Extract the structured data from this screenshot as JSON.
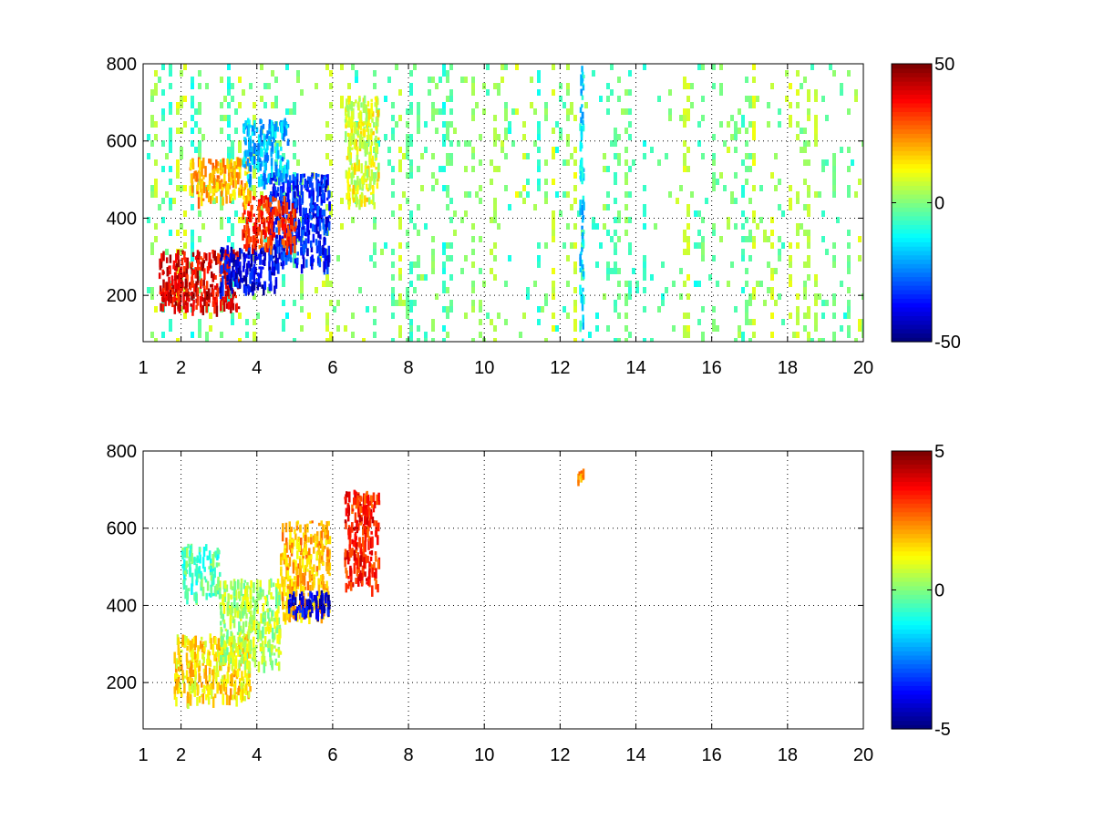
{
  "chart_data": [
    {
      "type": "heatmap",
      "title": "",
      "xlabel": "",
      "ylabel": "",
      "xlim": [
        1,
        20
      ],
      "ylim": [
        80,
        800
      ],
      "x_scale": "linear",
      "x_ticks": [
        1,
        2,
        4,
        6,
        8,
        10,
        12,
        14,
        16,
        18,
        20
      ],
      "x_tick_labels": [
        "1",
        "2",
        "4",
        "6",
        "8",
        "10",
        "12",
        "14",
        "16",
        "18",
        "20"
      ],
      "y_ticks": [
        200,
        400,
        600,
        800
      ],
      "y_tick_labels": [
        "200",
        "400",
        "600",
        "800"
      ],
      "grid": true,
      "colormap": "jet",
      "clim": [
        -50,
        50
      ],
      "colorbar_ticks": [
        -50,
        0,
        50
      ],
      "colorbar_tick_labels": [
        "-50",
        "0",
        "50"
      ],
      "features": [
        {
          "x": [
            1.4,
            3.5
          ],
          "y": [
            170,
            320
          ],
          "value": 40
        },
        {
          "x": [
            3.0,
            4.5
          ],
          "y": [
            220,
            330
          ],
          "value": -40
        },
        {
          "x": [
            4.3,
            5.9
          ],
          "y": [
            280,
            520
          ],
          "value": -35
        },
        {
          "x": [
            3.6,
            5.0
          ],
          "y": [
            330,
            460
          ],
          "value": 35
        },
        {
          "x": [
            2.2,
            3.8
          ],
          "y": [
            450,
            560
          ],
          "value": 20
        },
        {
          "x": [
            3.6,
            4.8
          ],
          "y": [
            500,
            660
          ],
          "value": -20
        },
        {
          "x": [
            6.3,
            7.2
          ],
          "y": [
            440,
            720
          ],
          "value": 10
        },
        {
          "x": [
            12.5,
            12.6
          ],
          "y": [
            80,
            800
          ],
          "value": -15
        }
      ],
      "background_speckle": {
        "x_range": [
          1,
          20
        ],
        "y_range": [
          80,
          800
        ],
        "value_range": [
          -12,
          12
        ]
      }
    },
    {
      "type": "heatmap",
      "title": "",
      "xlabel": "",
      "ylabel": "",
      "xlim": [
        1,
        20
      ],
      "ylim": [
        80,
        800
      ],
      "x_scale": "linear",
      "x_ticks": [
        1,
        2,
        4,
        6,
        8,
        10,
        12,
        14,
        16,
        18,
        20
      ],
      "x_tick_labels": [
        "1",
        "2",
        "4",
        "6",
        "8",
        "10",
        "12",
        "14",
        "16",
        "18",
        "20"
      ],
      "y_ticks": [
        200,
        400,
        600,
        800
      ],
      "y_tick_labels": [
        "200",
        "400",
        "600",
        "800"
      ],
      "grid": true,
      "colormap": "jet",
      "clim": [
        -5,
        5
      ],
      "colorbar_ticks": [
        -5,
        0,
        5
      ],
      "colorbar_tick_labels": [
        "-5",
        "0",
        "5"
      ],
      "features": [
        {
          "x": [
            1.8,
            3.8
          ],
          "y": [
            160,
            330
          ],
          "value": 1.5
        },
        {
          "x": [
            3.0,
            4.6
          ],
          "y": [
            250,
            470
          ],
          "value": 0.5
        },
        {
          "x": [
            4.6,
            5.9
          ],
          "y": [
            370,
            620
          ],
          "value": 2
        },
        {
          "x": [
            4.8,
            5.9
          ],
          "y": [
            380,
            440
          ],
          "value": -4
        },
        {
          "x": [
            6.3,
            7.2
          ],
          "y": [
            450,
            700
          ],
          "value": 3.5
        },
        {
          "x": [
            2.0,
            3.0
          ],
          "y": [
            430,
            560
          ],
          "value": -0.5
        },
        {
          "x": [
            12.45,
            12.6
          ],
          "y": [
            720,
            755
          ],
          "value": 2
        }
      ]
    }
  ]
}
